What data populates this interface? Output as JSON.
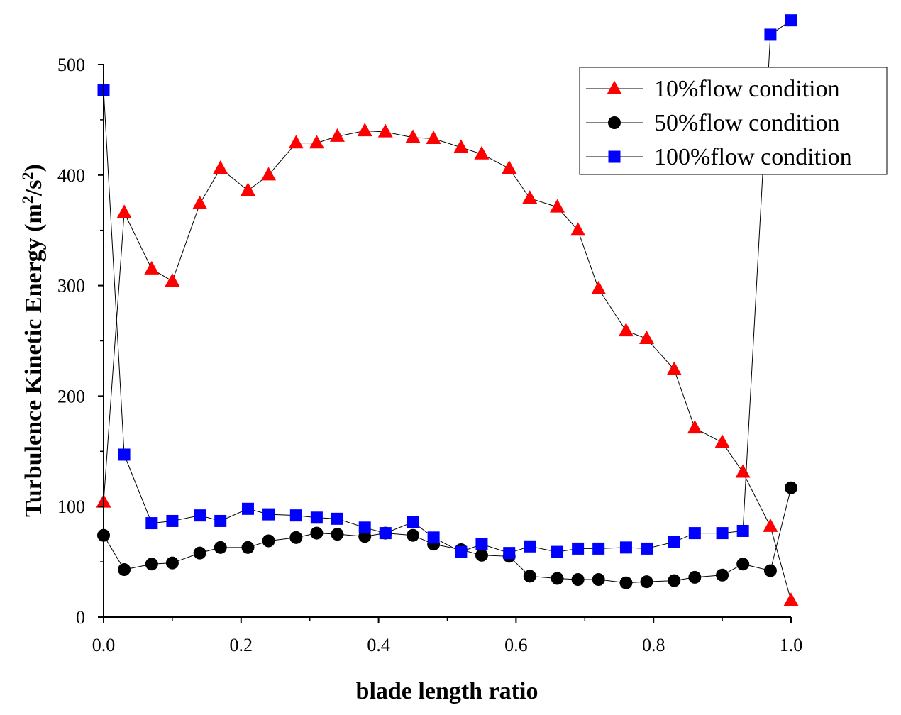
{
  "chart_data": {
    "type": "line",
    "title": "",
    "xlabel": "blade length ratio",
    "ylabel": "Turbulence Kinetic Energy (m²/s²)",
    "ylabel_parts": {
      "main": "Turbulence Kinetic Energy (m",
      "sup1": "2",
      "mid": "/s",
      "sup2": "2",
      "end": ")"
    },
    "xlim": [
      0,
      1.0
    ],
    "ylim": [
      0,
      500
    ],
    "x_ticks": [
      0.0,
      0.2,
      0.4,
      0.6,
      0.8,
      1.0
    ],
    "x_tick_labels": [
      "0.0",
      "0.2",
      "0.4",
      "0.6",
      "0.8",
      "1.0"
    ],
    "y_ticks": [
      0,
      100,
      200,
      300,
      400,
      500
    ],
    "y_tick_labels": [
      "0",
      "100",
      "200",
      "300",
      "400",
      "500"
    ],
    "legend_position": "top-right",
    "x": [
      0.0,
      0.03,
      0.07,
      0.1,
      0.14,
      0.17,
      0.21,
      0.24,
      0.28,
      0.31,
      0.34,
      0.38,
      0.41,
      0.45,
      0.48,
      0.52,
      0.55,
      0.59,
      0.62,
      0.66,
      0.69,
      0.72,
      0.76,
      0.79,
      0.83,
      0.86,
      0.9,
      0.93,
      0.97,
      1.0
    ],
    "series": [
      {
        "name": "10%flow condition",
        "marker": "triangle",
        "color": "#ff0000",
        "values": [
          104,
          366,
          315,
          304,
          374,
          406,
          386,
          400,
          429,
          429,
          435,
          440,
          439,
          434,
          433,
          425,
          419,
          406,
          379,
          371,
          350,
          297,
          259,
          252,
          224,
          171,
          158,
          131,
          82,
          15
        ]
      },
      {
        "name": "50%flow condition",
        "marker": "circle",
        "color": "#000000",
        "values": [
          74,
          43,
          48,
          49,
          58,
          63,
          63,
          69,
          72,
          76,
          75,
          73,
          76,
          74,
          66,
          61,
          56,
          55,
          37,
          35,
          34,
          34,
          31,
          32,
          33,
          36,
          38,
          48,
          42,
          117
        ]
      },
      {
        "name": "100%flow condition",
        "marker": "square",
        "color": "#0000ff",
        "values": [
          477,
          147,
          85,
          87,
          92,
          87,
          98,
          93,
          92,
          90,
          89,
          81,
          76,
          86,
          72,
          59,
          66,
          58,
          64,
          59,
          62,
          62,
          63,
          62,
          68,
          76,
          76,
          78,
          527,
          540
        ]
      }
    ]
  }
}
